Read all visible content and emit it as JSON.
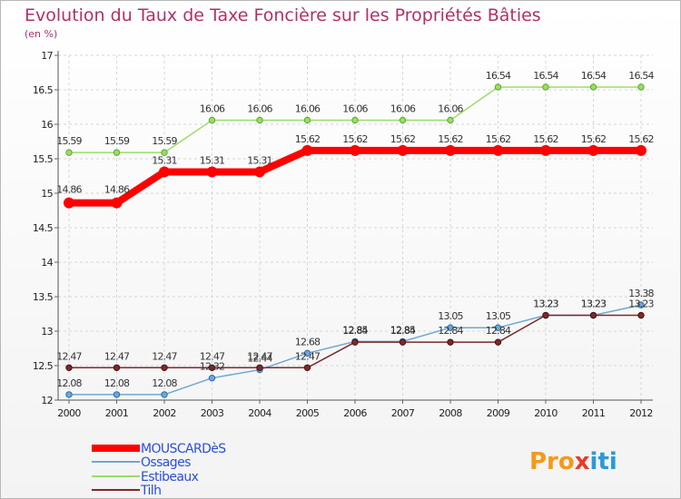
{
  "chart_data": {
    "type": "line",
    "title": "Evolution du Taux de Taxe Foncière sur les Propriétés Bâties",
    "unit_label": "(en %)",
    "xlabel": "",
    "ylabel": "",
    "ylim": [
      12,
      17
    ],
    "y_ticks": [
      "12",
      "12.5",
      "13",
      "13.5",
      "14",
      "14.5",
      "15",
      "15.5",
      "16",
      "16.5",
      "17"
    ],
    "categories": [
      "2000",
      "2001",
      "2002",
      "2003",
      "2004",
      "2005",
      "2006",
      "2007",
      "2008",
      "2009",
      "2010",
      "2011",
      "2012"
    ],
    "series": [
      {
        "name": "MOUSCARDèS",
        "color": "#ff0000",
        "values": [
          14.86,
          14.86,
          15.31,
          15.31,
          15.31,
          15.62,
          15.62,
          15.62,
          15.62,
          15.62,
          15.62,
          15.62,
          15.62
        ],
        "labels": [
          "14.86",
          "14.86",
          "15.31",
          "15.31",
          "15.31",
          "15.62",
          "15.62",
          "15.62",
          "15.62",
          "15.62",
          "15.62",
          "15.62",
          "15.62"
        ]
      },
      {
        "name": "Ossages",
        "color": "#6fa7d3",
        "values": [
          12.08,
          12.08,
          12.08,
          12.32,
          12.44,
          12.68,
          12.85,
          12.85,
          13.05,
          13.05,
          13.23,
          13.23,
          13.38
        ],
        "labels": [
          "12.08",
          "12.08",
          "12.08",
          "12.32",
          "12.44",
          "12.68",
          "12.85",
          "12.85",
          "13.05",
          "13.05",
          "13.23",
          "13.23",
          "13.38"
        ]
      },
      {
        "name": "Estibeaux",
        "color": "#99dd66",
        "values": [
          15.59,
          15.59,
          15.59,
          16.06,
          16.06,
          16.06,
          16.06,
          16.06,
          16.06,
          16.54,
          16.54,
          16.54,
          16.54
        ],
        "labels": [
          "15.59",
          "15.59",
          "15.59",
          "16.06",
          "16.06",
          "16.06",
          "16.06",
          "16.06",
          "16.06",
          "16.54",
          "16.54",
          "16.54",
          "16.54"
        ]
      },
      {
        "name": "Tilh",
        "color": "#7a2a2a",
        "values": [
          12.47,
          12.47,
          12.47,
          12.47,
          12.47,
          12.47,
          12.84,
          12.84,
          12.84,
          12.84,
          13.23,
          13.23,
          13.23
        ],
        "labels": [
          "12.47",
          "12.47",
          "12.47",
          "12.47",
          "12.47",
          "12.47",
          "12.84",
          "12.84",
          "12.84",
          "12.84",
          "13.23",
          "13.23",
          "13.23"
        ]
      }
    ]
  },
  "logo": {
    "text_1": "Pro",
    "text_x": "x",
    "text_2": "iti"
  }
}
